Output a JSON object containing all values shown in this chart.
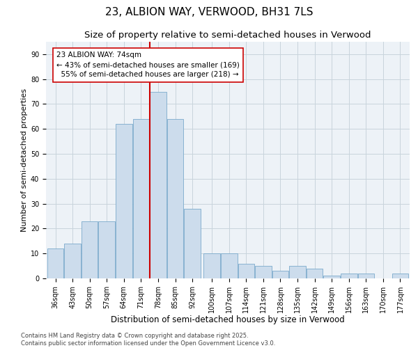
{
  "title": "23, ALBION WAY, VERWOOD, BH31 7LS",
  "subtitle": "Size of property relative to semi-detached houses in Verwood",
  "xlabel": "Distribution of semi-detached houses by size in Verwood",
  "ylabel": "Number of semi-detached properties",
  "bar_color": "#ccdcec",
  "bar_edge_color": "#7aaacb",
  "grid_color": "#c8d4dc",
  "background_color": "#edf2f7",
  "vline_x": 74.5,
  "vline_color": "#cc0000",
  "annotation_text": "23 ALBION WAY: 74sqm\n← 43% of semi-detached houses are smaller (169)\n  55% of semi-detached houses are larger (218) →",
  "annotation_box_color": "white",
  "annotation_box_edge": "#cc0000",
  "bins": [
    36,
    43,
    50,
    57,
    64,
    71,
    78,
    85,
    92,
    100,
    107,
    114,
    121,
    128,
    135,
    142,
    149,
    156,
    163,
    170,
    177
  ],
  "counts": [
    12,
    14,
    23,
    23,
    62,
    64,
    75,
    64,
    28,
    10,
    10,
    6,
    5,
    3,
    5,
    4,
    1,
    2,
    2,
    0,
    2
  ],
  "ylim": [
    0,
    95
  ],
  "yticks": [
    0,
    10,
    20,
    30,
    40,
    50,
    60,
    70,
    80,
    90
  ],
  "footnote": "Contains HM Land Registry data © Crown copyright and database right 2025.\nContains public sector information licensed under the Open Government Licence v3.0.",
  "title_fontsize": 11,
  "subtitle_fontsize": 9.5,
  "xlabel_fontsize": 8.5,
  "ylabel_fontsize": 8,
  "tick_fontsize": 7,
  "annotation_fontsize": 7.5,
  "footnote_fontsize": 6
}
